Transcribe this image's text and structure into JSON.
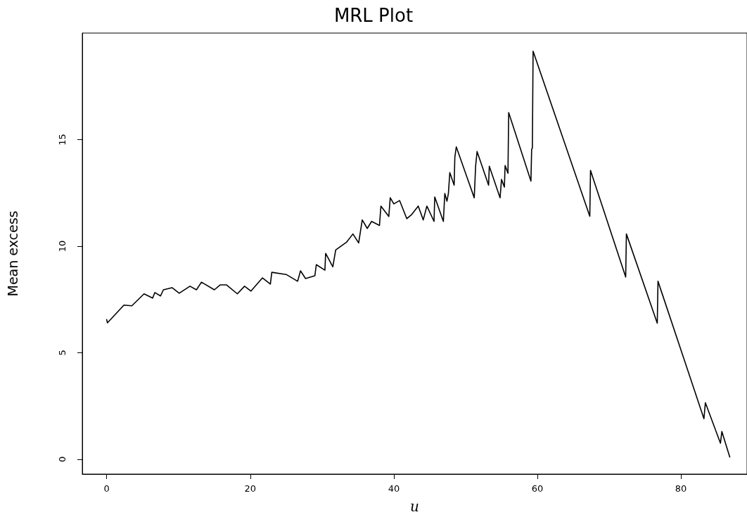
{
  "chart_data": {
    "type": "line",
    "title": "MRL Plot",
    "xlabel": "u",
    "ylabel": "Mean excess",
    "xlim": [
      -3.4,
      89.2
    ],
    "ylim": [
      -0.7,
      20
    ],
    "xticks": [
      0,
      20,
      40,
      60,
      80
    ],
    "yticks": [
      0,
      5,
      10,
      15
    ],
    "grid": false,
    "marker": "none",
    "line_style": "solid",
    "series": [
      {
        "color": "#000000",
        "x": [
          0.0,
          0.1,
          2.4,
          3.5,
          5.2,
          6.4,
          6.7,
          7.5,
          7.9,
          9.1,
          10.1,
          11.6,
          12.5,
          13.2,
          15.0,
          15.8,
          16.7,
          18.2,
          19.2,
          20.1,
          21.7,
          22.8,
          23.0,
          25.0,
          26.6,
          27.0,
          27.7,
          29.0,
          29.2,
          30.4,
          30.5,
          31.5,
          31.9,
          33.4,
          34.3,
          35.1,
          35.6,
          36.3,
          36.9,
          38.0,
          38.2,
          39.3,
          39.5,
          40.0,
          40.8,
          41.8,
          42.5,
          43.4,
          44.1,
          44.6,
          45.6,
          45.7,
          46.9,
          47.1,
          47.4,
          47.6,
          47.8,
          48.4,
          48.5,
          48.7,
          51.2,
          51.4,
          51.6,
          53.2,
          53.3,
          54.8,
          55.0,
          55.4,
          55.5,
          55.9,
          56.0,
          59.1,
          59.2,
          59.3,
          59.4,
          67.3,
          67.4,
          72.3,
          72.4,
          76.7,
          76.8,
          83.2,
          83.4,
          85.5,
          85.7,
          86.8
        ],
        "values": [
          6.55,
          6.4,
          7.23,
          7.2,
          7.76,
          7.56,
          7.82,
          7.66,
          7.95,
          8.05,
          7.79,
          8.12,
          7.95,
          8.31,
          7.95,
          8.18,
          8.18,
          7.76,
          8.12,
          7.89,
          8.51,
          8.22,
          8.77,
          8.67,
          8.35,
          8.84,
          8.48,
          8.61,
          9.13,
          8.87,
          9.66,
          9.03,
          9.82,
          10.18,
          10.57,
          10.15,
          11.23,
          10.83,
          11.16,
          10.97,
          11.88,
          11.39,
          12.27,
          11.98,
          12.14,
          11.29,
          11.49,
          11.88,
          11.23,
          11.88,
          11.16,
          12.31,
          11.16,
          12.47,
          12.11,
          12.47,
          13.45,
          12.86,
          14.17,
          14.66,
          12.27,
          13.78,
          14.44,
          12.86,
          13.75,
          12.27,
          13.13,
          12.77,
          13.78,
          13.42,
          16.27,
          13.05,
          14.55,
          14.6,
          19.15,
          11.4,
          13.55,
          8.55,
          10.57,
          6.38,
          8.35,
          1.9,
          2.65,
          0.75,
          1.3,
          0.1
        ]
      }
    ]
  }
}
